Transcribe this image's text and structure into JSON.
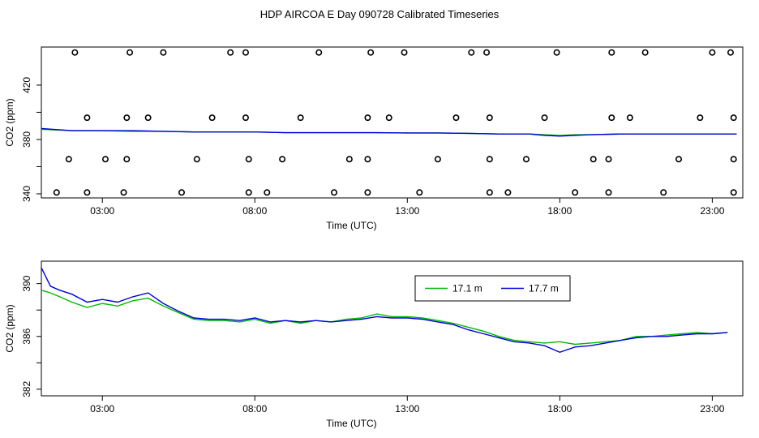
{
  "title": "HDP AIRCOA E  Day 090728  Calibrated Timeseries",
  "colors": {
    "s1": "#00bb00",
    "s2": "#0000dd",
    "axis": "#000000",
    "points": "#000000"
  },
  "chart_data": [
    {
      "type": "line",
      "id": "top",
      "xlabel": "Time (UTC)",
      "ylabel": "CO2 (ppm)",
      "xlim": [
        1.0,
        24.0
      ],
      "ylim": [
        337.0,
        448.0
      ],
      "xticks": [
        3,
        8,
        13,
        18,
        23
      ],
      "xtick_labels": [
        "03:00",
        "08:00",
        "13:00",
        "18:00",
        "23:00"
      ],
      "yticks": [
        340,
        380,
        420
      ],
      "ytick_labels": [
        "340",
        "380",
        "420"
      ],
      "yticks_minor": [
        360,
        400
      ],
      "series": [
        {
          "name": "17.1 m",
          "x": [
            1.0,
            2.0,
            3.0,
            4.0,
            5.0,
            6.0,
            7.0,
            8.0,
            9.0,
            10.0,
            11.0,
            12.0,
            13.0,
            14.0,
            15.0,
            16.0,
            17.0,
            17.5,
            18.0,
            18.5,
            19.0,
            20.0,
            21.0,
            22.0,
            23.0,
            23.8
          ],
          "y": [
            387.5,
            386.5,
            386.5,
            386.0,
            386.0,
            385.5,
            385.5,
            385.5,
            385.0,
            385.0,
            385.0,
            385.0,
            384.8,
            384.8,
            384.5,
            384.0,
            384.0,
            383.5,
            383.0,
            383.5,
            383.5,
            384.0,
            384.0,
            384.0,
            384.0,
            384.0
          ]
        },
        {
          "name": "17.7 m",
          "x": [
            1.0,
            2.0,
            3.0,
            4.0,
            5.0,
            6.0,
            7.0,
            8.0,
            9.0,
            10.0,
            11.0,
            12.0,
            13.0,
            14.0,
            15.0,
            16.0,
            17.0,
            17.5,
            18.0,
            18.5,
            19.0,
            20.0,
            21.0,
            22.0,
            23.0,
            23.8
          ],
          "y": [
            388.0,
            386.5,
            386.5,
            386.5,
            386.0,
            385.5,
            385.5,
            385.5,
            385.0,
            385.0,
            385.0,
            385.0,
            384.8,
            384.8,
            384.5,
            384.0,
            384.0,
            383.0,
            382.5,
            383.0,
            383.5,
            384.0,
            384.0,
            384.0,
            384.0,
            384.0
          ]
        }
      ],
      "markers": [
        {
          "x": 1.5,
          "y": 341.0
        },
        {
          "x": 2.5,
          "y": 341.0
        },
        {
          "x": 3.7,
          "y": 341.0
        },
        {
          "x": 5.6,
          "y": 341.0
        },
        {
          "x": 7.8,
          "y": 341.0
        },
        {
          "x": 8.4,
          "y": 341.0
        },
        {
          "x": 10.6,
          "y": 341.0
        },
        {
          "x": 11.7,
          "y": 341.0
        },
        {
          "x": 13.4,
          "y": 341.0
        },
        {
          "x": 15.7,
          "y": 341.0
        },
        {
          "x": 16.3,
          "y": 341.0
        },
        {
          "x": 18.5,
          "y": 341.0
        },
        {
          "x": 19.6,
          "y": 341.0
        },
        {
          "x": 21.4,
          "y": 341.0
        },
        {
          "x": 23.7,
          "y": 341.0
        },
        {
          "x": 1.9,
          "y": 365.5
        },
        {
          "x": 3.1,
          "y": 365.5
        },
        {
          "x": 3.8,
          "y": 365.5
        },
        {
          "x": 6.1,
          "y": 365.5
        },
        {
          "x": 7.8,
          "y": 365.5
        },
        {
          "x": 8.9,
          "y": 365.5
        },
        {
          "x": 11.1,
          "y": 365.5
        },
        {
          "x": 11.7,
          "y": 365.5
        },
        {
          "x": 14.0,
          "y": 365.5
        },
        {
          "x": 15.7,
          "y": 365.5
        },
        {
          "x": 16.9,
          "y": 365.5
        },
        {
          "x": 19.1,
          "y": 365.5
        },
        {
          "x": 19.6,
          "y": 365.5
        },
        {
          "x": 21.9,
          "y": 365.5
        },
        {
          "x": 23.7,
          "y": 365.5
        },
        {
          "x": 2.5,
          "y": 396.0
        },
        {
          "x": 3.8,
          "y": 396.0
        },
        {
          "x": 4.5,
          "y": 396.0
        },
        {
          "x": 6.6,
          "y": 396.0
        },
        {
          "x": 7.7,
          "y": 396.0
        },
        {
          "x": 9.5,
          "y": 396.0
        },
        {
          "x": 11.7,
          "y": 396.0
        },
        {
          "x": 12.4,
          "y": 396.0
        },
        {
          "x": 14.6,
          "y": 396.0
        },
        {
          "x": 15.7,
          "y": 396.0
        },
        {
          "x": 17.5,
          "y": 396.0
        },
        {
          "x": 19.7,
          "y": 396.0
        },
        {
          "x": 20.3,
          "y": 396.0
        },
        {
          "x": 22.6,
          "y": 396.0
        },
        {
          "x": 23.7,
          "y": 396.0
        },
        {
          "x": 2.1,
          "y": 444.0
        },
        {
          "x": 3.9,
          "y": 444.0
        },
        {
          "x": 5.0,
          "y": 444.0
        },
        {
          "x": 7.2,
          "y": 444.0
        },
        {
          "x": 7.7,
          "y": 444.0
        },
        {
          "x": 10.1,
          "y": 444.0
        },
        {
          "x": 11.8,
          "y": 444.0
        },
        {
          "x": 12.9,
          "y": 444.0
        },
        {
          "x": 15.1,
          "y": 444.0
        },
        {
          "x": 15.6,
          "y": 444.0
        },
        {
          "x": 17.9,
          "y": 444.0
        },
        {
          "x": 19.7,
          "y": 444.0
        },
        {
          "x": 20.8,
          "y": 444.0
        },
        {
          "x": 23.0,
          "y": 444.0
        },
        {
          "x": 23.6,
          "y": 444.0
        }
      ]
    },
    {
      "type": "line",
      "id": "bottom",
      "xlabel": "Time (UTC)",
      "ylabel": "CO2 (ppm)",
      "xlim": [
        1.0,
        24.0
      ],
      "ylim": [
        381.5,
        391.7
      ],
      "xticks": [
        3,
        8,
        13,
        18,
        23
      ],
      "xtick_labels": [
        "03:00",
        "08:00",
        "13:00",
        "18:00",
        "23:00"
      ],
      "yticks": [
        382,
        386,
        390
      ],
      "ytick_labels": [
        "382",
        "386",
        "390"
      ],
      "yticks_minor": [
        384,
        388
      ],
      "legend": {
        "position": "top-center",
        "labels": [
          "17.1 m",
          "17.7 m"
        ]
      },
      "series": [
        {
          "name": "17.1 m",
          "x": [
            1.0,
            1.3,
            1.6,
            2.0,
            2.5,
            3.0,
            3.5,
            4.0,
            4.5,
            5.0,
            5.5,
            6.0,
            6.5,
            7.0,
            7.5,
            8.0,
            8.5,
            9.0,
            9.5,
            10.0,
            10.5,
            11.0,
            11.5,
            12.0,
            12.5,
            13.0,
            13.5,
            14.0,
            14.5,
            15.0,
            15.5,
            16.0,
            16.5,
            17.0,
            17.5,
            18.0,
            18.5,
            19.0,
            19.5,
            20.0,
            20.5,
            21.0,
            21.5,
            22.0,
            22.5,
            23.0,
            23.5
          ],
          "y": [
            389.5,
            389.3,
            389.0,
            388.6,
            388.2,
            388.5,
            388.3,
            388.7,
            388.9,
            388.3,
            387.8,
            387.3,
            387.2,
            387.2,
            387.1,
            387.3,
            387.0,
            387.2,
            387.0,
            387.2,
            387.1,
            387.3,
            387.4,
            387.7,
            387.5,
            387.5,
            387.4,
            387.2,
            387.0,
            386.7,
            386.4,
            386.0,
            385.7,
            385.6,
            385.5,
            385.6,
            385.4,
            385.5,
            385.6,
            385.7,
            386.0,
            386.0,
            386.1,
            386.2,
            386.3,
            386.2,
            386.3
          ]
        },
        {
          "name": "17.7 m",
          "x": [
            1.0,
            1.3,
            1.6,
            2.0,
            2.5,
            3.0,
            3.5,
            4.0,
            4.5,
            5.0,
            5.5,
            6.0,
            6.5,
            7.0,
            7.5,
            8.0,
            8.5,
            9.0,
            9.5,
            10.0,
            10.5,
            11.0,
            11.5,
            12.0,
            12.5,
            13.0,
            13.5,
            14.0,
            14.5,
            15.0,
            15.5,
            16.0,
            16.5,
            17.0,
            17.5,
            18.0,
            18.5,
            19.0,
            19.5,
            20.0,
            20.5,
            21.0,
            21.5,
            22.0,
            22.5,
            23.0,
            23.5
          ],
          "y": [
            391.2,
            389.8,
            389.5,
            389.2,
            388.6,
            388.8,
            388.6,
            389.0,
            389.3,
            388.5,
            387.9,
            387.4,
            387.3,
            387.3,
            387.2,
            387.4,
            387.1,
            387.2,
            387.1,
            387.2,
            387.1,
            387.2,
            387.3,
            387.5,
            387.4,
            387.4,
            387.3,
            387.1,
            386.9,
            386.5,
            386.2,
            385.9,
            385.6,
            385.5,
            385.3,
            384.8,
            385.2,
            385.3,
            385.5,
            385.7,
            385.9,
            386.0,
            386.0,
            386.1,
            386.2,
            386.2,
            386.3
          ]
        }
      ]
    }
  ]
}
